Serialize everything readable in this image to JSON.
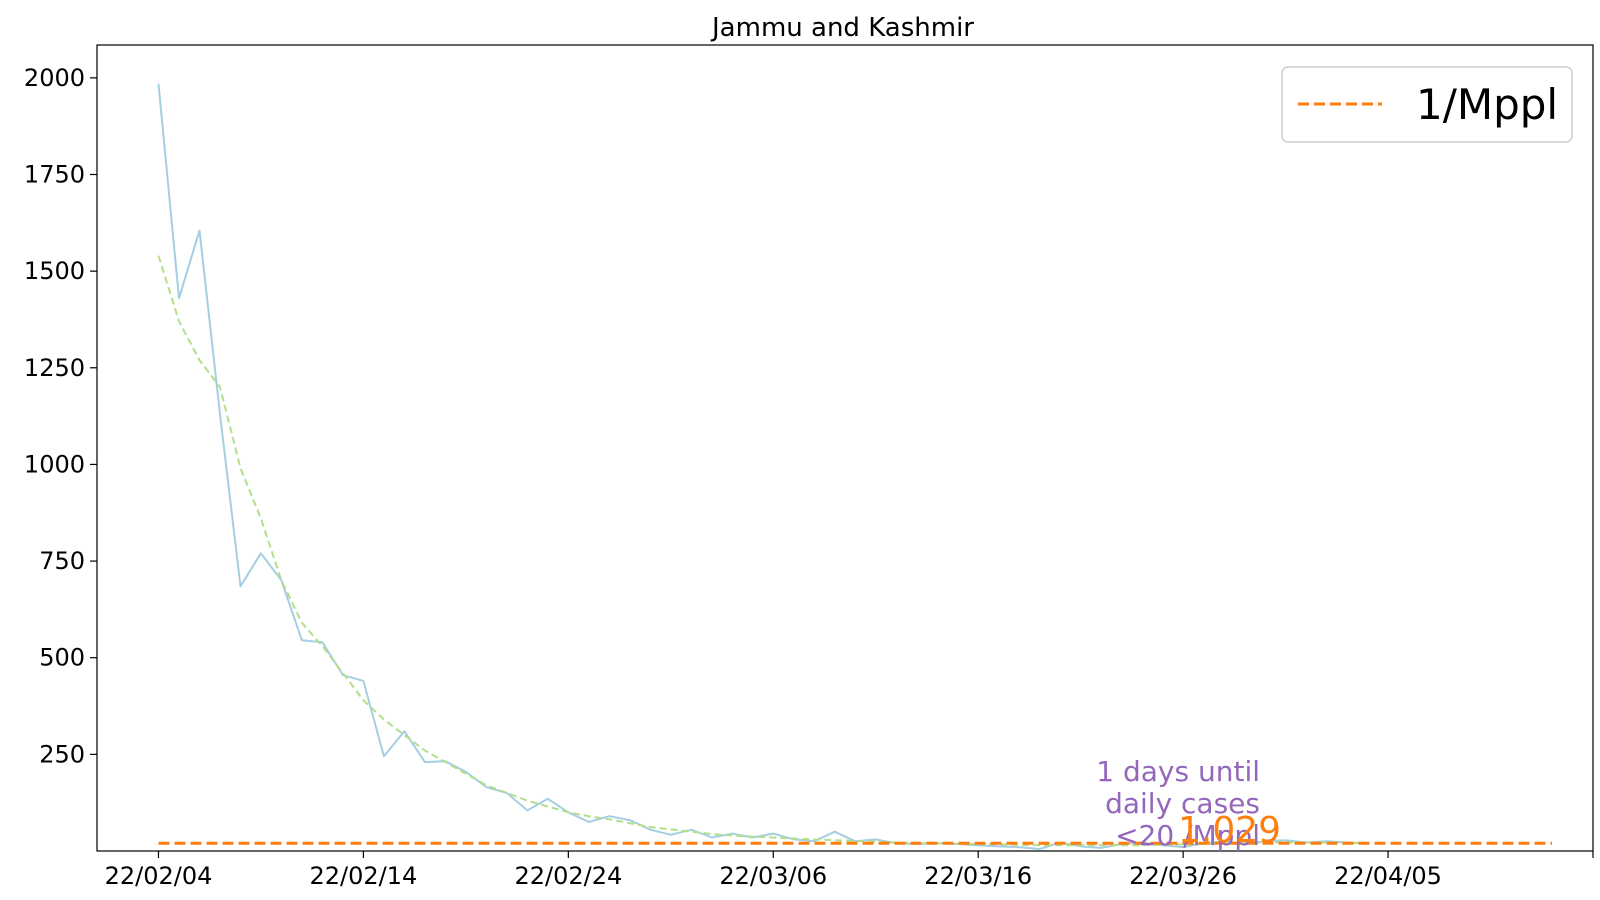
{
  "chart_data": {
    "type": "line",
    "title": "Jammu and Kashmir",
    "xlabel": "",
    "ylabel": "",
    "x_start": "2022-02-04",
    "xlim": [
      "2022-02-01",
      "2022-04-15"
    ],
    "ylim": [
      0,
      2085
    ],
    "yticks": [
      250,
      500,
      750,
      1000,
      1250,
      1500,
      1750,
      2000
    ],
    "xticks": [
      {
        "date": "2022-02-04",
        "label": "22/02/04"
      },
      {
        "date": "2022-02-14",
        "label": "22/02/14"
      },
      {
        "date": "2022-02-24",
        "label": "22/02/24"
      },
      {
        "date": "2022-03-06",
        "label": "22/03/06"
      },
      {
        "date": "2022-03-16",
        "label": "22/03/16"
      },
      {
        "date": "2022-03-26",
        "label": "22/03/26"
      },
      {
        "date": "2022-04-05",
        "label": "22/04/05"
      },
      {
        "date": "2022-04-15",
        "label": ""
      }
    ],
    "grid": false,
    "legend_position": "top-right",
    "series": [
      {
        "name": "",
        "style": "solid",
        "color": "#a6cee3",
        "values": [
          1985,
          1430,
          1605,
          1130,
          685,
          770,
          700,
          545,
          540,
          455,
          440,
          245,
          310,
          230,
          232,
          205,
          165,
          150,
          105,
          135,
          100,
          75,
          90,
          80,
          55,
          42,
          55,
          35,
          45,
          35,
          45,
          30,
          25,
          50,
          25,
          30,
          20,
          18,
          20,
          18,
          15,
          12,
          10,
          5,
          22,
          12,
          8,
          18,
          22,
          15,
          10,
          20,
          25,
          18,
          25,
          28,
          22,
          25,
          22,
          20
        ]
      },
      {
        "name": "",
        "style": "dashed",
        "color": "#b2df8a",
        "values": [
          1540,
          1370,
          1270,
          1200,
          990,
          860,
          700,
          590,
          530,
          460,
          390,
          340,
          300,
          260,
          230,
          200,
          170,
          150,
          130,
          115,
          100,
          90,
          82,
          72,
          62,
          56,
          50,
          44,
          40,
          37,
          35,
          32,
          30,
          28,
          26,
          24,
          22,
          21,
          20,
          19,
          18,
          17,
          16,
          15,
          15,
          15,
          15,
          15,
          15,
          16,
          17,
          18,
          20,
          22,
          22,
          22,
          22,
          22,
          21,
          20
        ]
      },
      {
        "name": "1/Mppl",
        "style": "dashed",
        "color": "#ff7f0e",
        "constant": 20,
        "x_range": [
          "2022-02-04",
          "2022-04-13"
        ]
      }
    ],
    "annotations": [
      {
        "text": "1 days until",
        "color": "#9467bd"
      },
      {
        "text": "daily cases",
        "color": "#9467bd"
      },
      {
        "text": "<20 /Mppl",
        "color": "#9467bd"
      },
      {
        "text": "1.029",
        "color": "#ff7f0e"
      }
    ]
  }
}
